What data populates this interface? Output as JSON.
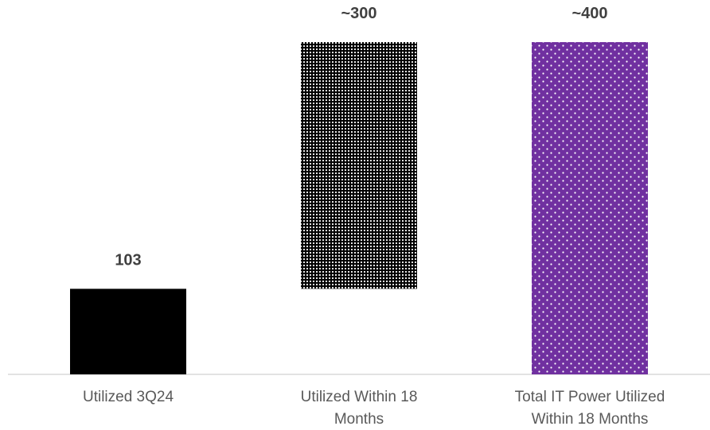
{
  "chart_data": {
    "type": "waterfall",
    "categories": [
      [
        "Utilized 3Q24"
      ],
      [
        "Utilized Within 18",
        "Months"
      ],
      [
        "Total IT Power Utilized",
        "Within 18 Months"
      ]
    ],
    "bars": [
      {
        "name": "Utilized 3Q24",
        "base": 0,
        "value": 103,
        "label": "103",
        "color": "#000000",
        "pattern": "solid"
      },
      {
        "name": "Utilized Within 18 Months",
        "base": 103,
        "value": 297,
        "label": "~300",
        "color": "#000000",
        "pattern": "dots-dense-white"
      },
      {
        "name": "Total IT Power Utilized Within 18 Months",
        "base": 0,
        "value": 400,
        "label": "~400",
        "color": "#7030A0",
        "pattern": "dots-sparse-white"
      }
    ],
    "ylim": [
      0,
      400
    ],
    "grid": false,
    "legend": "none",
    "title": "",
    "xlabel": "",
    "ylabel": ""
  }
}
